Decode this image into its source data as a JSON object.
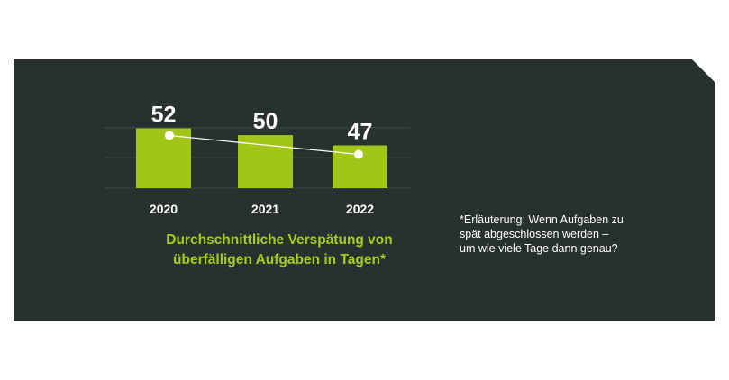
{
  "chart_data": {
    "type": "bar",
    "categories": [
      "2020",
      "2021",
      "2022"
    ],
    "values": [
      52,
      50,
      47
    ],
    "title": "Durchschnittliche Verspätung von überfälligen Aufgaben in Tagen*",
    "xlabel": "",
    "ylabel": "",
    "grid": true,
    "trend_line": true,
    "colors": {
      "bar": "#a2c617",
      "background": "#263130",
      "title": "#a6cc1c",
      "text": "#ffffff"
    }
  },
  "title_lines": [
    "Durchschnittliche Verspätung von",
    "überfälligen Aufgaben in Tagen*"
  ],
  "note_lines": [
    "*Erläuterung: Wenn Aufgaben zu",
    "spät abgeschlossen werden –",
    "um wie viele Tage dann genau?"
  ]
}
